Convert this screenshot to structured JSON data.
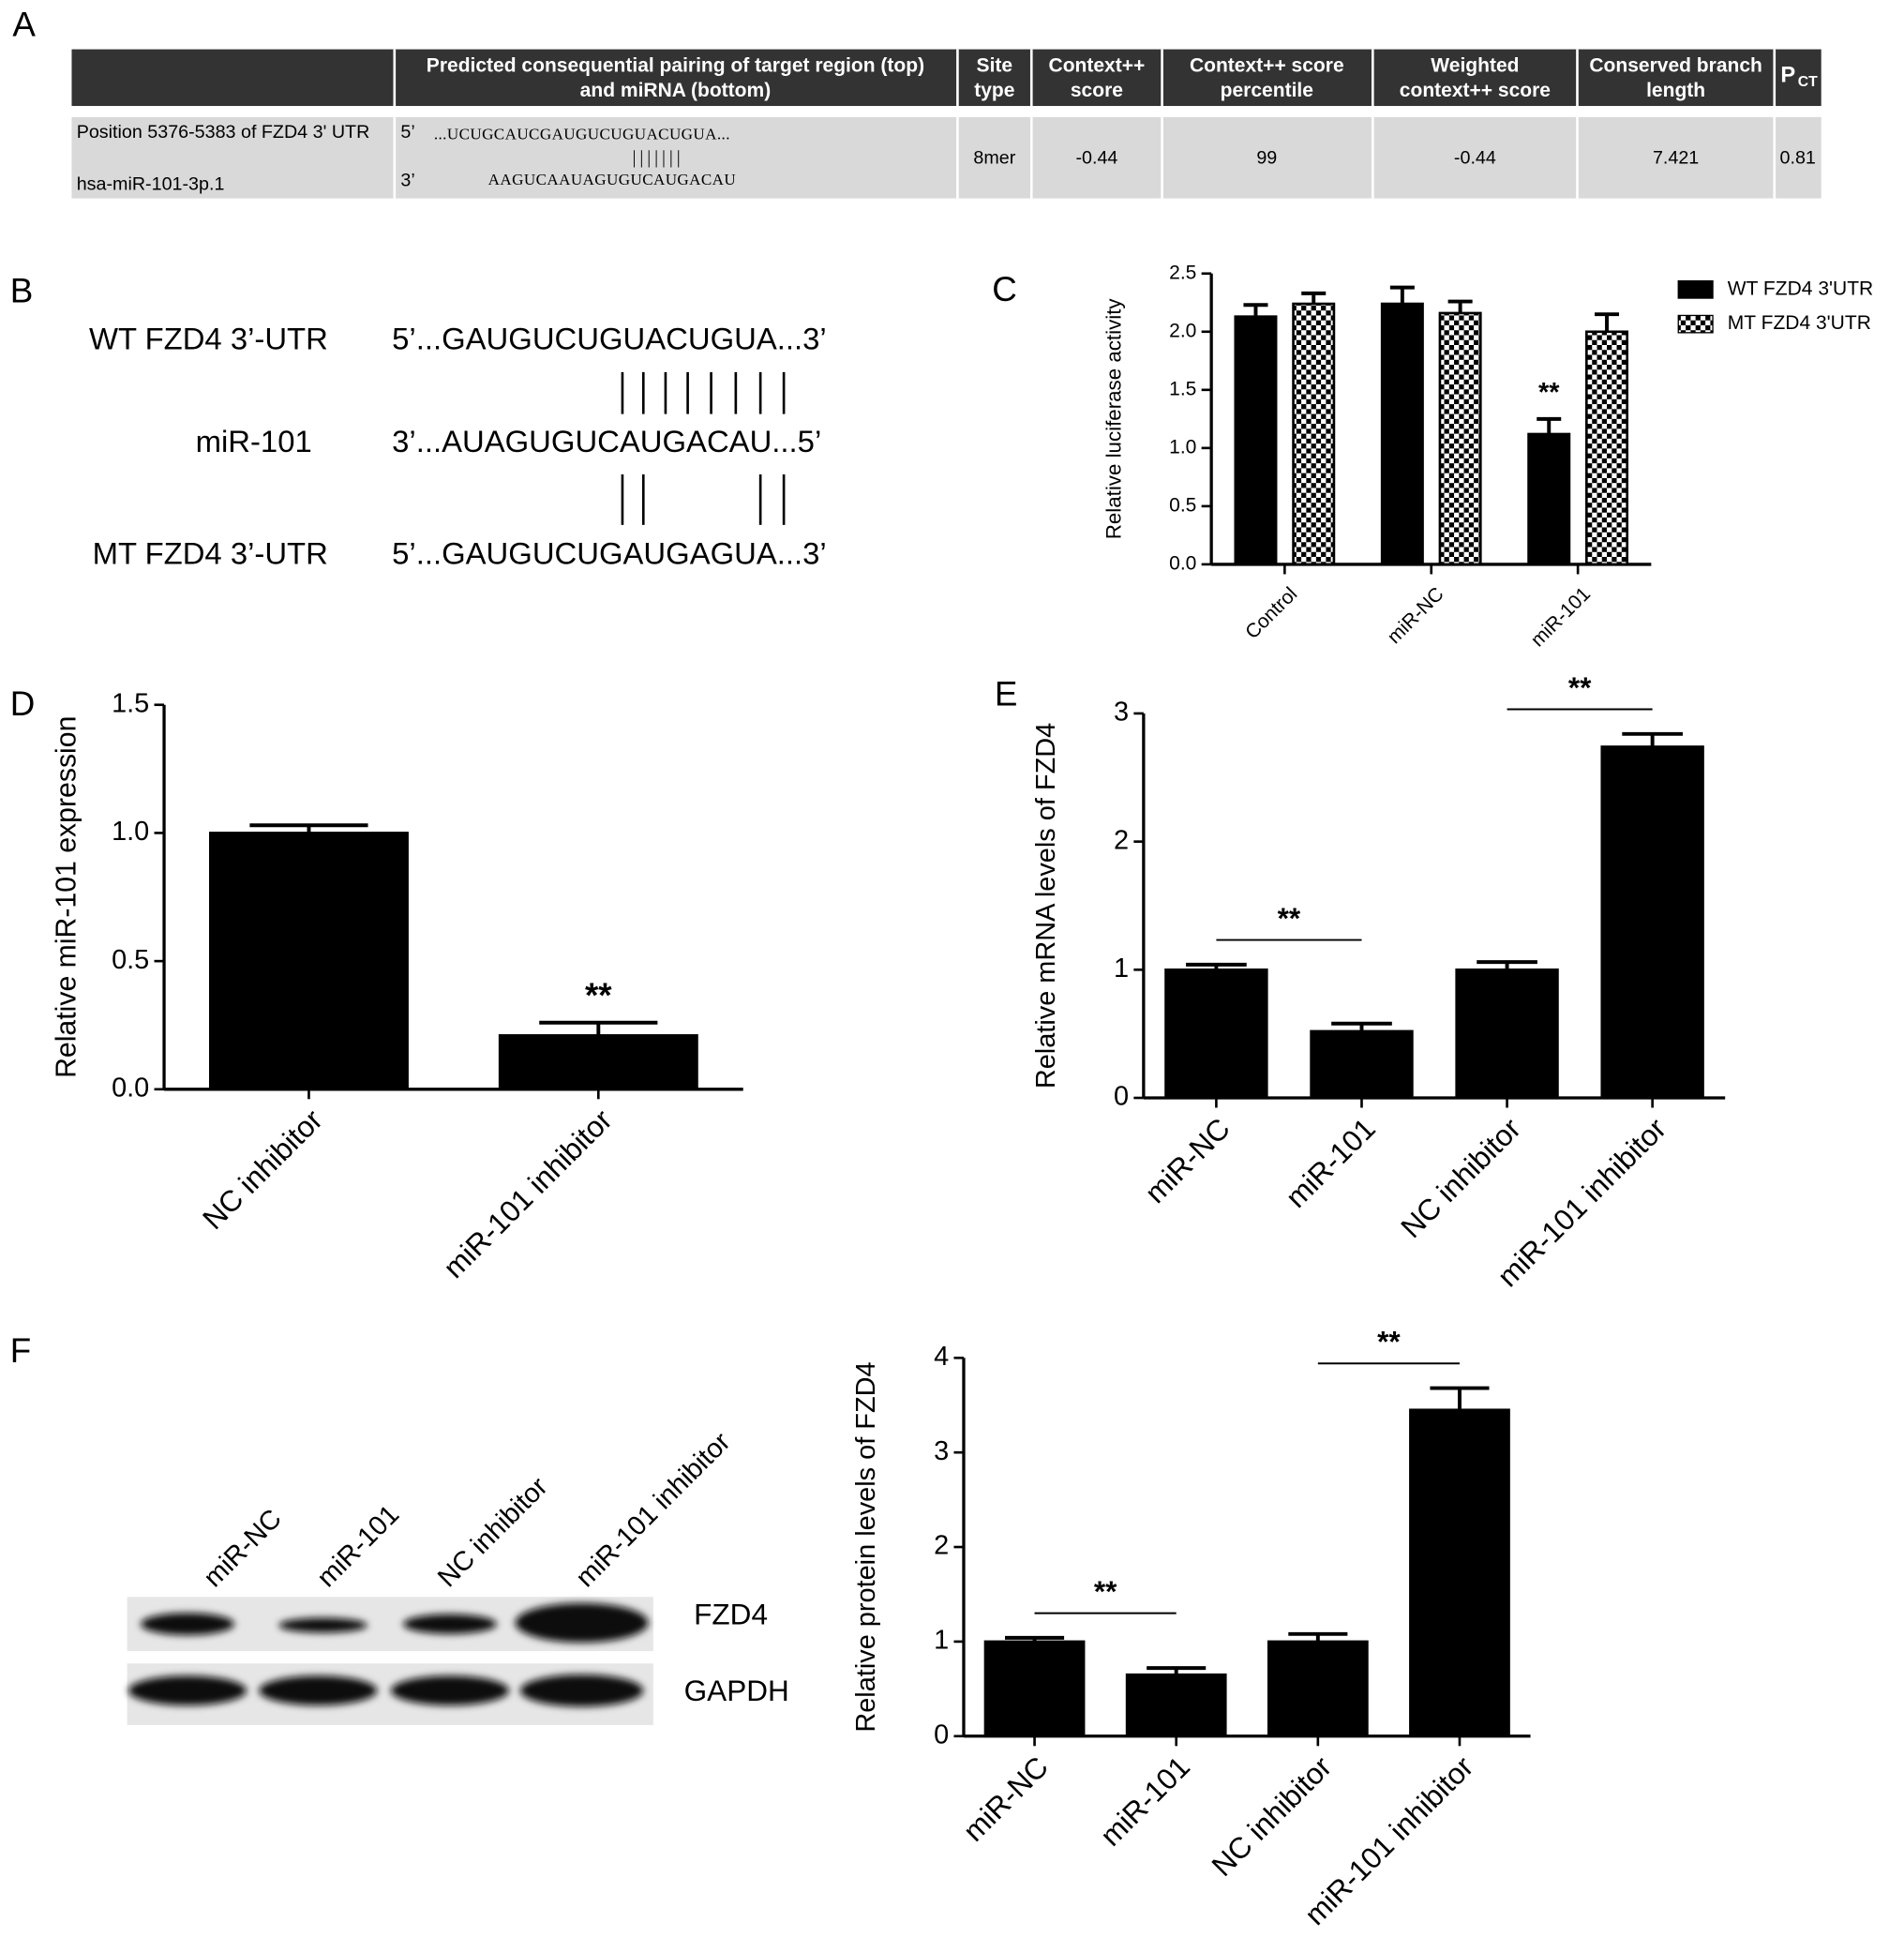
{
  "panel_labels": [
    "A",
    "B",
    "C",
    "D",
    "E",
    "F"
  ],
  "table": {
    "header": [
      [
        "Predicted consequential pairing of target region (top)",
        "and miRNA (bottom)"
      ],
      [
        "Site",
        "type"
      ],
      [
        "Context++",
        "score"
      ],
      [
        "Context++ score",
        "percentile"
      ],
      [
        "Weighted",
        "context++ score"
      ],
      [
        "Conserved branch",
        "length"
      ],
      {
        "base": "P",
        "sub": "CT"
      }
    ],
    "row": {
      "position": "Position 5376-5383 of FZD4 3' UTR",
      "mirna": "hsa-miR-101-3p.1",
      "target_end": "5’",
      "target_seq": "...UCUGCAUCGAUGUCUGUACUGUA...",
      "pairing": "|||||||",
      "mirna_end": "3’",
      "mirna_seq": "AAGUCAAUAGUGUCAUGACAU",
      "site_type": "8mer",
      "context_score": -0.44,
      "percentile": 99,
      "weighted_score": -0.44,
      "branch_length": 7.421,
      "pct": 0.81
    }
  },
  "alignment": {
    "rows": [
      {
        "label": "WT FZD4 3’-UTR",
        "sequence": "5’...GAUGUCUGUACUGUA...3’"
      },
      {
        "label": "miR-101",
        "sequence": "3’...AUAGUGUCAUGACAU...5’"
      },
      {
        "label": "MT FZD4 3’-UTR",
        "sequence": "5’...GAUGUCUGAUGAGUA...3’"
      }
    ]
  },
  "blot": {
    "lanes": [
      "miR-NC",
      "miR-101",
      "NC inhibitor",
      "miR-101 inhibitor"
    ],
    "bands": [
      "FZD4",
      "GAPDH"
    ]
  },
  "chart_data": [
    {
      "type": "bar",
      "ylabel": "Relative luciferase activity",
      "categories": [
        "Control",
        "miR-NC",
        "miR-101"
      ],
      "series": [
        {
          "name": "WT FZD4 3'UTR",
          "color": "#000000",
          "values": [
            2.13,
            2.24,
            1.12
          ],
          "errors": [
            0.1,
            0.14,
            0.13
          ]
        },
        {
          "name": "MT FZD4 3'UTR",
          "color": "#000000",
          "pattern": "checker",
          "values": [
            2.24,
            2.16,
            2.0
          ],
          "errors": [
            0.09,
            0.1,
            0.15
          ]
        }
      ],
      "ylim": [
        0,
        2.5
      ],
      "yticks": [
        {
          "value": 0,
          "label": "0.0"
        },
        0.5,
        {
          "value": 1,
          "label": "1.0"
        },
        1.5,
        {
          "value": 2,
          "label": "2.0"
        },
        2.5
      ],
      "annotations": [
        {
          "text": "**",
          "series": 0,
          "category": 2
        }
      ]
    },
    {
      "type": "bar",
      "ylabel": "Relative miR-101 expression",
      "categories": [
        "NC inhibitor",
        "miR-101 inhibitor"
      ],
      "values": [
        1.0,
        0.21
      ],
      "errors": [
        0.03,
        0.05
      ],
      "color": "#000000",
      "ylim": [
        0,
        1.5
      ],
      "yticks": [
        {
          "value": 0,
          "label": "0.0"
        },
        0.5,
        {
          "value": 1,
          "label": "1.0"
        },
        1.5
      ],
      "annotations": [
        {
          "text": "**",
          "category": 1
        }
      ]
    },
    {
      "type": "bar",
      "ylabel": "Relative mRNA levels of FZD4",
      "categories": [
        "miR-NC",
        "miR-101",
        "NC inhibitor",
        "miR-101 inhibitor"
      ],
      "values": [
        1.0,
        0.52,
        1.0,
        2.74
      ],
      "errors": [
        0.04,
        0.06,
        0.06,
        0.1
      ],
      "color": "#000000",
      "ylim": [
        0,
        3
      ],
      "yticks": [
        0,
        1,
        2,
        3
      ],
      "annotations": [
        {
          "text": "**",
          "between": [
            0,
            1
          ]
        },
        {
          "text": "**",
          "between": [
            2,
            3
          ]
        }
      ]
    },
    {
      "type": "bar",
      "ylabel": "Relative protein levels of FZD4",
      "categories": [
        "miR-NC",
        "miR-101",
        "NC inhibitor",
        "miR-101 inhibitor"
      ],
      "values": [
        1.0,
        0.65,
        1.0,
        3.45
      ],
      "errors": [
        0.04,
        0.07,
        0.08,
        0.23
      ],
      "color": "#000000",
      "ylim": [
        0,
        4
      ],
      "yticks": [
        0,
        1,
        2,
        3,
        4
      ],
      "annotations": [
        {
          "text": "**",
          "between": [
            0,
            1
          ]
        },
        {
          "text": "**",
          "between": [
            2,
            3
          ]
        }
      ]
    }
  ]
}
